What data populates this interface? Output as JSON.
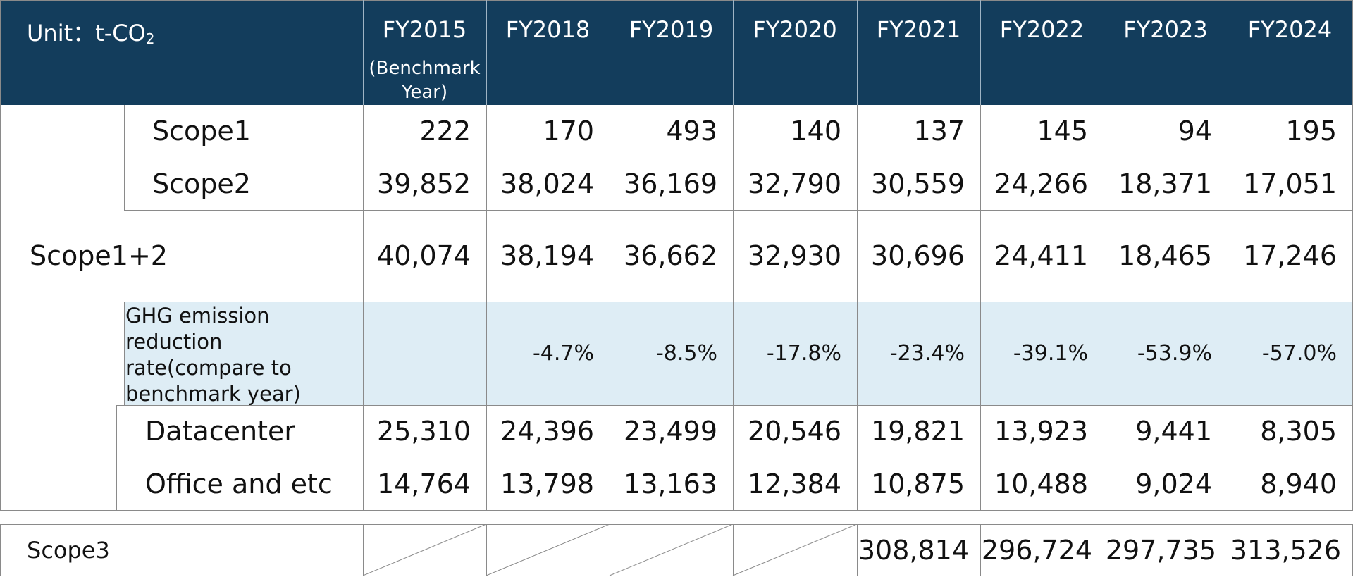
{
  "header": {
    "unit_prefix": "Unit：t-CO",
    "unit_sub": "2",
    "years": [
      "FY2015",
      "FY2018",
      "FY2019",
      "FY2020",
      "FY2021",
      "FY2022",
      "FY2023",
      "FY2024"
    ],
    "benchmark_note": "(Benchmark Year)"
  },
  "rows": {
    "scope1": {
      "label": "Scope1",
      "values": [
        "222",
        "170",
        "493",
        "140",
        "137",
        "145",
        "94",
        "195"
      ]
    },
    "scope2": {
      "label": "Scope2",
      "values": [
        "39,852",
        "38,024",
        "36,169",
        "32,790",
        "30,559",
        "24,266",
        "18,371",
        "17,051"
      ]
    },
    "scope12": {
      "label": "Scope1+2",
      "values": [
        "40,074",
        "38,194",
        "36,662",
        "32,930",
        "30,696",
        "24,411",
        "18,465",
        "17,246"
      ]
    },
    "rate": {
      "label": "GHG emission reduction rate(compare to benchmark year)",
      "values": [
        "",
        "-4.7%",
        "-8.5%",
        "-17.8%",
        "-23.4%",
        "-39.1%",
        "-53.9%",
        "-57.0%"
      ]
    },
    "datacenter": {
      "label": "Datacenter",
      "values": [
        "25,310",
        "24,396",
        "23,499",
        "20,546",
        "19,821",
        "13,923",
        "9,441",
        "8,305"
      ]
    },
    "office": {
      "label": "Office and etc",
      "values": [
        "14,764",
        "13,798",
        "13,163",
        "12,384",
        "10,875",
        "10,488",
        "9,024",
        "8,940"
      ]
    }
  },
  "scope3": {
    "label": "Scope3",
    "values": [
      "",
      "",
      "",
      "",
      "308,814",
      "296,724",
      "297,735",
      "313,526"
    ]
  }
}
